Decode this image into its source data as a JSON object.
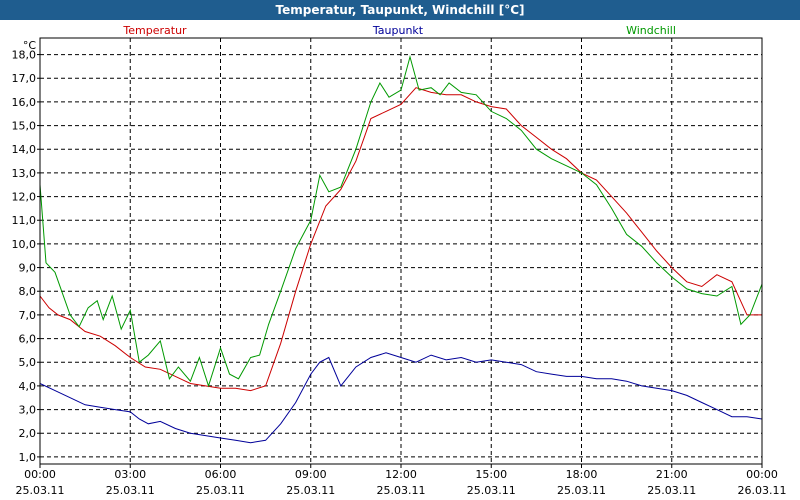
{
  "window": {
    "title": "Temperatur, Taupunkt, Windchill [°C]"
  },
  "chart_data": {
    "type": "line",
    "title": "Temperatur, Taupunkt, Windchill [°C]",
    "unit_label": "°C",
    "ylim": [
      0.7,
      18.7
    ],
    "y_ticks": [
      "1,0",
      "2,0",
      "3,0",
      "4,0",
      "5,0",
      "6,0",
      "7,0",
      "8,0",
      "9,0",
      "10,0",
      "11,0",
      "12,0",
      "13,0",
      "14,0",
      "15,0",
      "16,0",
      "17,0",
      "18,0"
    ],
    "y_tick_values": [
      1,
      2,
      3,
      4,
      5,
      6,
      7,
      8,
      9,
      10,
      11,
      12,
      13,
      14,
      15,
      16,
      17,
      18
    ],
    "x_range_hours": [
      0,
      24
    ],
    "x_ticks": [
      {
        "time": "00:00",
        "date": "25.03.11",
        "hour": 0
      },
      {
        "time": "03:00",
        "date": "25.03.11",
        "hour": 3
      },
      {
        "time": "06:00",
        "date": "25.03.11",
        "hour": 6
      },
      {
        "time": "09:00",
        "date": "25.03.11",
        "hour": 9
      },
      {
        "time": "12:00",
        "date": "25.03.11",
        "hour": 12
      },
      {
        "time": "15:00",
        "date": "25.03.11",
        "hour": 15
      },
      {
        "time": "18:00",
        "date": "25.03.11",
        "hour": 18
      },
      {
        "time": "21:00",
        "date": "25.03.11",
        "hour": 21
      },
      {
        "time": "00:00",
        "date": "26.03.11",
        "hour": 24
      }
    ],
    "grid": true,
    "series": [
      {
        "name": "Temperatur",
        "color": "#cc0000",
        "x": [
          0,
          0.3,
          0.6,
          1,
          1.5,
          2,
          2.5,
          3,
          3.5,
          4,
          4.5,
          5,
          5.5,
          6,
          6.5,
          7,
          7.5,
          8,
          8.5,
          9,
          9.5,
          10,
          10.5,
          11,
          11.5,
          12,
          12.5,
          13,
          13.5,
          14,
          14.5,
          15,
          15.5,
          16,
          16.5,
          17,
          17.5,
          18,
          18.5,
          19,
          19.5,
          20,
          20.5,
          21,
          21.5,
          22,
          22.5,
          23,
          23.5,
          24
        ],
        "values": [
          7.8,
          7.3,
          7.0,
          6.8,
          6.3,
          6.1,
          5.7,
          5.2,
          4.8,
          4.7,
          4.4,
          4.1,
          4.0,
          3.9,
          3.9,
          3.8,
          4.0,
          5.8,
          8.0,
          10.0,
          11.6,
          12.3,
          13.5,
          15.3,
          15.6,
          15.9,
          16.6,
          16.4,
          16.3,
          16.3,
          16.0,
          15.8,
          15.7,
          15.0,
          14.5,
          14.0,
          13.6,
          13.0,
          12.7,
          12.0,
          11.3,
          10.5,
          9.7,
          9.0,
          8.4,
          8.2,
          8.7,
          8.4,
          7.0,
          7.0
        ]
      },
      {
        "name": "Taupunkt",
        "color": "#000099",
        "x": [
          0,
          0.5,
          1,
          1.5,
          2,
          2.5,
          3,
          3.3,
          3.6,
          4,
          4.5,
          5,
          5.5,
          6,
          6.5,
          7,
          7.5,
          8,
          8.5,
          9,
          9.3,
          9.6,
          10,
          10.5,
          11,
          11.5,
          12,
          12.5,
          13,
          13.5,
          14,
          14.5,
          15,
          15.5,
          16,
          16.5,
          17,
          17.5,
          18,
          18.5,
          19,
          19.5,
          20,
          20.5,
          21,
          21.5,
          22,
          22.5,
          23,
          23.5,
          24
        ],
        "values": [
          4.1,
          3.8,
          3.5,
          3.2,
          3.1,
          3.0,
          2.9,
          2.6,
          2.4,
          2.5,
          2.2,
          2.0,
          1.9,
          1.8,
          1.7,
          1.6,
          1.7,
          2.4,
          3.3,
          4.5,
          5.0,
          5.2,
          4.0,
          4.8,
          5.2,
          5.4,
          5.2,
          5.0,
          5.3,
          5.1,
          5.2,
          5.0,
          5.1,
          5.0,
          4.9,
          4.6,
          4.5,
          4.4,
          4.4,
          4.3,
          4.3,
          4.2,
          4.0,
          3.9,
          3.8,
          3.6,
          3.3,
          3.0,
          2.7,
          2.7,
          2.6
        ]
      },
      {
        "name": "Windchill",
        "color": "#009900",
        "x": [
          0,
          0.2,
          0.5,
          1,
          1.3,
          1.6,
          1.9,
          2.1,
          2.4,
          2.7,
          3,
          3.3,
          3.6,
          4,
          4.3,
          4.6,
          5,
          5.3,
          5.6,
          6,
          6.3,
          6.6,
          7,
          7.3,
          7.6,
          8,
          8.5,
          9,
          9.3,
          9.6,
          10,
          10.5,
          11,
          11.3,
          11.6,
          12,
          12.3,
          12.6,
          13,
          13.3,
          13.6,
          14,
          14.5,
          15,
          15.5,
          16,
          16.5,
          17,
          17.5,
          18,
          18.5,
          19,
          19.5,
          20,
          20.5,
          21,
          21.5,
          22,
          22.5,
          23,
          23.3,
          23.6,
          24
        ],
        "values": [
          12.5,
          9.2,
          8.8,
          7.0,
          6.5,
          7.3,
          7.6,
          6.8,
          7.8,
          6.4,
          7.2,
          5.0,
          5.3,
          5.9,
          4.3,
          4.8,
          4.2,
          5.2,
          4.0,
          5.6,
          4.5,
          4.3,
          5.2,
          5.3,
          6.6,
          8.0,
          9.8,
          11.0,
          12.9,
          12.2,
          12.4,
          14.0,
          16.0,
          16.8,
          16.2,
          16.5,
          17.9,
          16.5,
          16.6,
          16.3,
          16.8,
          16.4,
          16.3,
          15.6,
          15.3,
          14.8,
          14.0,
          13.6,
          13.3,
          13.0,
          12.5,
          11.5,
          10.4,
          9.9,
          9.2,
          8.6,
          8.1,
          7.9,
          7.8,
          8.2,
          6.6,
          7.0,
          8.3
        ]
      }
    ]
  }
}
